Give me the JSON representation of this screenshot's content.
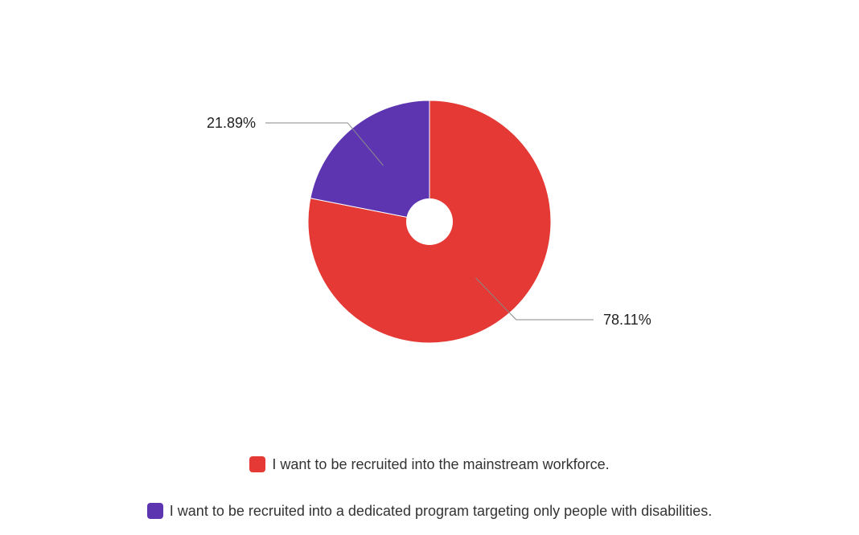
{
  "chart_data": {
    "type": "pie",
    "hole": true,
    "legend_position": "bottom",
    "slices": [
      {
        "label": "I want to be recruited into the mainstream workforce.",
        "value": 78.11,
        "value_label": "78.11%",
        "color": "#e53935"
      },
      {
        "label": "I want to be recruited into a dedicated program targeting only people with disabilities.",
        "value": 21.89,
        "value_label": "21.89%",
        "color": "#5e35b1"
      }
    ]
  }
}
